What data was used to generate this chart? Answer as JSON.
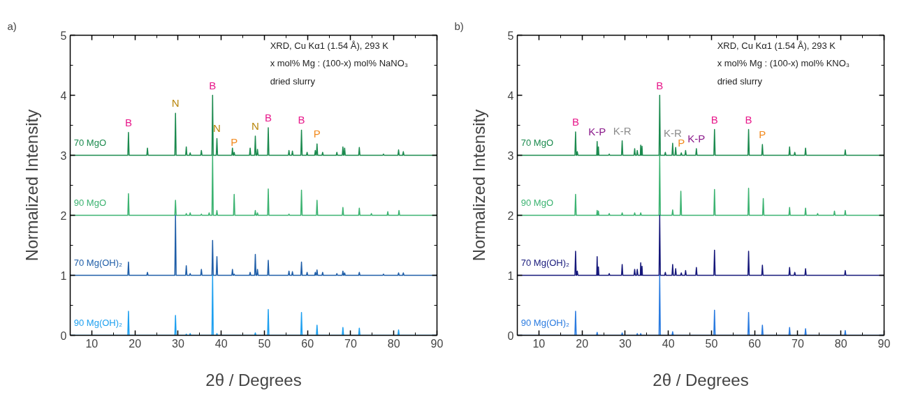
{
  "chart_data": [
    {
      "type": "line",
      "title": "a)",
      "xlabel": "2θ / Degrees",
      "ylabel": "Normalized Intensity",
      "xlim": [
        5,
        90
      ],
      "ylim": [
        0,
        5
      ],
      "xticks": [
        10,
        20,
        30,
        40,
        50,
        60,
        70,
        80,
        90
      ],
      "yticks": [
        0,
        1,
        2,
        3,
        4,
        5
      ],
      "annotations": [
        "XRD, Cu Kα1 (1.54 Å), 293 K",
        "x mol% Mg : (100-x) mol% NaNO₃",
        "dried slurry",
        {
          "text": "B",
          "x": 18.5,
          "y": 3.38
        },
        {
          "text": "N",
          "x": 29.4,
          "y": 3.7
        },
        {
          "text": "B",
          "x": 38,
          "y": 4
        },
        {
          "text": "N",
          "x": 39,
          "y": 3.28
        },
        {
          "text": "P",
          "x": 43,
          "y": 3.05
        },
        {
          "text": "N",
          "x": 47.9,
          "y": 3.32
        },
        {
          "text": "B",
          "x": 50.9,
          "y": 3.46
        },
        {
          "text": "B",
          "x": 58.6,
          "y": 3.42
        },
        {
          "text": "P",
          "x": 62.2,
          "y": 3.19
        }
      ],
      "series": [
        {
          "name": "70 MgO",
          "color": "#1b8a4e",
          "x": [
            5,
            18.35,
            18.5,
            18.65,
            22.75,
            22.9,
            23.05,
            29.25,
            29.4,
            29.55,
            31.75,
            31.9,
            32.05,
            32.65,
            32.8,
            32.95,
            35.25,
            35.4,
            35.55,
            37.85,
            38,
            38.15,
            38.85,
            39,
            39.15,
            42.45,
            42.6,
            42.75,
            42.85,
            43,
            43.15,
            46.55,
            46.7,
            46.85,
            47.75,
            47.9,
            48.05,
            48.25,
            48.4,
            48.55,
            50.75,
            50.9,
            51.05,
            55.55,
            55.7,
            55.85,
            56.35,
            56.5,
            56.65,
            58.45,
            58.6,
            58.75,
            59.75,
            59.9,
            60.05,
            61.65,
            61.8,
            61.95,
            62.05,
            62.2,
            62.35,
            63.35,
            63.5,
            63.65,
            66.65,
            66.8,
            66.95,
            68.05,
            68.2,
            68.35,
            68.45,
            68.6,
            68.75,
            71.85,
            72,
            72.15,
            77.45,
            77.6,
            77.75,
            80.95,
            81.1,
            81.25,
            82.05,
            82.2,
            82.35,
            90
          ],
          "values": [
            3,
            3,
            3.38,
            3,
            3,
            3.12,
            3,
            3,
            3.7,
            3,
            3,
            3.14,
            3,
            3,
            3.04,
            3,
            3,
            3.08,
            3,
            3,
            4,
            3,
            3,
            3.28,
            3,
            3,
            3.12,
            3,
            3,
            3.05,
            3,
            3,
            3.12,
            3,
            3,
            3.32,
            3,
            3,
            3.1,
            3,
            3,
            3.46,
            3,
            3,
            3.08,
            3,
            3,
            3.07,
            3,
            3,
            3.42,
            3,
            3,
            3.05,
            3,
            3,
            3.08,
            3,
            3,
            3.19,
            3,
            3,
            3.05,
            3,
            3,
            3.05,
            3,
            3,
            3.14,
            3,
            3,
            3.12,
            3,
            3,
            3.13,
            3,
            3,
            3.02,
            3,
            3,
            3.09,
            3,
            3,
            3.06,
            3,
            3
          ]
        },
        {
          "name": "90 MgO",
          "color": "#3cb371",
          "x": [
            5,
            18.35,
            18.5,
            18.65,
            29.25,
            29.4,
            29.55,
            31.75,
            31.9,
            32.05,
            32.65,
            32.8,
            32.95,
            35.25,
            35.4,
            35.55,
            37.05,
            37.2,
            37.35,
            37.85,
            38,
            38.15,
            38.85,
            39,
            39.15,
            42.85,
            43,
            43.15,
            47.75,
            47.9,
            48.05,
            48.25,
            48.4,
            48.55,
            50.75,
            50.9,
            51.05,
            55.55,
            55.7,
            55.85,
            58.45,
            58.6,
            58.75,
            62.05,
            62.2,
            62.35,
            68.05,
            68.2,
            68.35,
            71.85,
            72,
            72.15,
            74.65,
            74.8,
            74.95,
            78.45,
            78.6,
            78.75,
            81.05,
            81.2,
            81.35,
            90
          ],
          "values": [
            2,
            2,
            2.36,
            2,
            2,
            2.25,
            2,
            2,
            2.03,
            2,
            2,
            2.04,
            2,
            2,
            2.02,
            2,
            2,
            2.04,
            2,
            2,
            3,
            2,
            2,
            2.08,
            2,
            2,
            2.35,
            2,
            2,
            2.08,
            2,
            2,
            2.04,
            2,
            2,
            2.44,
            2,
            2,
            2.02,
            2,
            2,
            2.42,
            2,
            2,
            2.25,
            2,
            2,
            2.13,
            2,
            2,
            2.12,
            2,
            2,
            2.03,
            2,
            2,
            2.06,
            2,
            2,
            2.08,
            2,
            2
          ]
        },
        {
          "name": "70 Mg(OH)₂",
          "color": "#1f5ea8",
          "x": [
            5,
            18.35,
            18.5,
            18.65,
            22.75,
            22.9,
            23.05,
            29.25,
            29.4,
            29.55,
            31.75,
            31.9,
            32.05,
            32.65,
            32.8,
            32.95,
            35.25,
            35.4,
            35.55,
            37.85,
            38,
            38.15,
            38.85,
            39,
            39.15,
            42.45,
            42.6,
            42.75,
            42.85,
            43,
            43.15,
            46.55,
            46.7,
            46.85,
            47.75,
            47.9,
            48.05,
            48.25,
            48.4,
            48.55,
            50.75,
            50.9,
            51.05,
            55.55,
            55.7,
            55.85,
            56.35,
            56.5,
            56.65,
            58.45,
            58.6,
            58.75,
            59.75,
            59.9,
            60.05,
            61.65,
            61.8,
            61.95,
            62.05,
            62.2,
            62.35,
            63.35,
            63.5,
            63.65,
            66.65,
            66.8,
            66.95,
            68.05,
            68.2,
            68.35,
            68.45,
            68.6,
            68.75,
            71.85,
            72,
            72.15,
            77.45,
            77.6,
            77.75,
            80.95,
            81.1,
            81.25,
            82.05,
            82.2,
            82.35,
            90
          ],
          "values": [
            1,
            1,
            1.22,
            1,
            1,
            1.05,
            1,
            1,
            2,
            1,
            1,
            1.16,
            1,
            1,
            1.03,
            1,
            1,
            1.1,
            1,
            1,
            1.58,
            1,
            1,
            1.31,
            1,
            1,
            1.1,
            1,
            1,
            1.02,
            1,
            1,
            1.05,
            1,
            1,
            1.35,
            1,
            1,
            1.1,
            1,
            1,
            1.25,
            1,
            1,
            1.07,
            1,
            1,
            1.06,
            1,
            1,
            1.22,
            1,
            1,
            1.05,
            1,
            1,
            1.05,
            1,
            1,
            1.09,
            1,
            1,
            1.05,
            1,
            1,
            1.03,
            1,
            1,
            1.07,
            1,
            1,
            1.04,
            1,
            1,
            1.05,
            1,
            1,
            1.02,
            1,
            1,
            1.04,
            1,
            1,
            1.04,
            1,
            1
          ]
        },
        {
          "name": "90 Mg(OH)₂",
          "color": "#1ea0f0",
          "x": [
            5,
            18.35,
            18.5,
            18.65,
            29.25,
            29.4,
            29.55,
            31.75,
            31.9,
            32.05,
            32.65,
            32.8,
            32.95,
            37.85,
            38,
            38.15,
            38.85,
            39,
            39.15,
            47.75,
            47.9,
            48.05,
            50.75,
            50.9,
            51.05,
            58.45,
            58.6,
            58.75,
            62.05,
            62.2,
            62.35,
            68.05,
            68.2,
            68.35,
            71.85,
            72,
            72.15,
            80.95,
            81.1,
            81.25,
            90
          ],
          "values": [
            0,
            0,
            0.4,
            0,
            0,
            0.33,
            0,
            0,
            0.02,
            0,
            0,
            0.03,
            0,
            0,
            1,
            0,
            0,
            0.03,
            0,
            0,
            0.04,
            0,
            0,
            0.43,
            0,
            0,
            0.38,
            0,
            0,
            0.17,
            0,
            0,
            0.13,
            0,
            0,
            0.12,
            0,
            0,
            0.09,
            0,
            0
          ]
        }
      ]
    },
    {
      "type": "line",
      "title": "b)",
      "xlabel": "2θ / Degrees",
      "ylabel": "Normalized Intensity",
      "xlim": [
        5,
        90
      ],
      "ylim": [
        0,
        5
      ],
      "xticks": [
        10,
        20,
        30,
        40,
        50,
        60,
        70,
        80,
        90
      ],
      "yticks": [
        0,
        1,
        2,
        3,
        4,
        5
      ],
      "annotations": [
        "XRD, Cu Kα1 (1.54 Å), 293 K",
        "x mol% Mg : (100-x) mol% KNO₃",
        "dried slurry",
        {
          "text": "B",
          "x": 18.5,
          "y": 3.39
        },
        {
          "text": "K-P",
          "x": 23.5,
          "y": 3.23
        },
        {
          "text": "K-R",
          "x": 29.3,
          "y": 3.24
        },
        {
          "text": "B",
          "x": 38,
          "y": 4
        },
        {
          "text": "K-R",
          "x": 41,
          "y": 3.2
        },
        {
          "text": "P",
          "x": 43,
          "y": 3.04
        },
        {
          "text": "K-P",
          "x": 46.5,
          "y": 3.11
        },
        {
          "text": "B",
          "x": 50.7,
          "y": 3.43
        },
        {
          "text": "B",
          "x": 58.6,
          "y": 3.43
        },
        {
          "text": "P",
          "x": 61.8,
          "y": 3.18
        }
      ],
      "series": [
        {
          "name": "70 MgO",
          "color": "#1b8a4e",
          "x": [
            5,
            18.35,
            18.5,
            18.65,
            18.75,
            18.9,
            19.05,
            23.4,
            23.5,
            23.6,
            23.7,
            23.8,
            23.9,
            26.15,
            26.3,
            26.45,
            29.15,
            29.3,
            29.45,
            32.05,
            32.2,
            32.35,
            32.65,
            32.8,
            32.95,
            33.5,
            33.6,
            33.7,
            33.8,
            33.9,
            34.0,
            37.85,
            38,
            38.15,
            39.15,
            39.3,
            39.45,
            40.85,
            41,
            41.15,
            41.55,
            41.7,
            41.85,
            42.85,
            43,
            43.15,
            43.85,
            44,
            44.15,
            46.35,
            46.5,
            46.65,
            50.55,
            50.7,
            50.85,
            58.45,
            58.6,
            58.75,
            61.65,
            61.8,
            61.95,
            67.95,
            68.1,
            68.25,
            69.15,
            69.3,
            69.45,
            71.65,
            71.8,
            71.95,
            80.85,
            81,
            81.15,
            90
          ],
          "values": [
            3,
            3,
            3.39,
            3,
            3,
            3.06,
            3,
            3,
            3.23,
            3,
            3,
            3.14,
            3,
            3,
            3.02,
            3,
            3,
            3.24,
            3,
            3,
            3.11,
            3,
            3,
            3.08,
            3,
            3,
            3.17,
            3,
            3,
            3.15,
            3,
            3,
            4,
            3,
            3,
            3.05,
            3,
            3,
            3.2,
            3,
            3,
            3.13,
            3,
            3,
            3.04,
            3,
            3,
            3.08,
            3,
            3,
            3.11,
            3,
            3,
            3.43,
            3,
            3,
            3.43,
            3,
            3,
            3.18,
            3,
            3,
            3.14,
            3,
            3,
            3.05,
            3,
            3,
            3.12,
            3,
            3,
            3.09,
            3,
            3
          ]
        },
        {
          "name": "90 MgO",
          "color": "#3cb371",
          "x": [
            5,
            18.35,
            18.5,
            18.65,
            23.4,
            23.5,
            23.6,
            23.7,
            23.8,
            23.9,
            26.15,
            26.3,
            26.45,
            29.15,
            29.3,
            29.45,
            32.05,
            32.2,
            32.35,
            33.45,
            33.6,
            33.75,
            37.85,
            38,
            38.15,
            40.85,
            41,
            41.15,
            42.75,
            42.9,
            43.05,
            50.55,
            50.7,
            50.85,
            58.45,
            58.6,
            58.75,
            61.85,
            62,
            62.15,
            67.95,
            68.1,
            68.25,
            71.65,
            71.8,
            71.95,
            74.45,
            74.6,
            74.75,
            78.35,
            78.5,
            78.65,
            80.85,
            81,
            81.15,
            90
          ],
          "values": [
            2,
            2,
            2.35,
            2,
            2,
            2.08,
            2,
            2,
            2.07,
            2,
            2,
            2.03,
            2,
            2,
            2.04,
            2,
            2,
            2.04,
            2,
            2,
            2.04,
            2,
            2,
            3,
            2,
            2,
            2.09,
            2,
            2,
            2.4,
            2,
            2,
            2.43,
            2,
            2,
            2.45,
            2,
            2,
            2.28,
            2,
            2,
            2.13,
            2,
            2,
            2.12,
            2,
            2,
            2.03,
            2,
            2,
            2.07,
            2,
            2,
            2.08,
            2,
            2
          ]
        },
        {
          "name": "70 Mg(OH)₂",
          "color": "#15177a",
          "x": [
            5,
            18.35,
            18.5,
            18.65,
            18.75,
            18.9,
            19.05,
            23.4,
            23.5,
            23.6,
            23.7,
            23.8,
            23.9,
            26.15,
            26.3,
            26.45,
            29.15,
            29.3,
            29.45,
            32.05,
            32.2,
            32.35,
            32.65,
            32.8,
            32.95,
            33.5,
            33.6,
            33.7,
            33.8,
            33.9,
            34.0,
            37.85,
            38,
            38.15,
            39.15,
            39.3,
            39.45,
            40.85,
            41,
            41.15,
            41.55,
            41.7,
            41.85,
            42.85,
            43,
            43.15,
            43.85,
            44,
            44.15,
            46.35,
            46.5,
            46.65,
            50.55,
            50.7,
            50.85,
            58.45,
            58.6,
            58.75,
            61.65,
            61.8,
            61.95,
            67.95,
            68.1,
            68.25,
            69.15,
            69.3,
            69.45,
            71.65,
            71.8,
            71.95,
            80.85,
            81,
            81.15,
            90
          ],
          "values": [
            1,
            1,
            1.4,
            1,
            1,
            1.07,
            1,
            1,
            1.31,
            1,
            1,
            1.14,
            1,
            1,
            1.03,
            1,
            1,
            1.18,
            1,
            1,
            1.1,
            1,
            1,
            1.1,
            1,
            1,
            1.21,
            1,
            1,
            1.15,
            1,
            1,
            2,
            1,
            1,
            1.05,
            1,
            1,
            1.18,
            1,
            1,
            1.11,
            1,
            1,
            1.04,
            1,
            1,
            1.08,
            1,
            1,
            1.13,
            1,
            1,
            1.42,
            1,
            1,
            1.4,
            1,
            1,
            1.17,
            1,
            1,
            1.13,
            1,
            1,
            1.05,
            1,
            1,
            1.11,
            1,
            1,
            1.08,
            1,
            1
          ]
        },
        {
          "name": "90 Mg(OH)₂",
          "color": "#2a7be0",
          "x": [
            5,
            18.35,
            18.5,
            18.65,
            23.35,
            23.5,
            23.65,
            29.15,
            29.3,
            29.45,
            32.65,
            32.8,
            32.95,
            33.45,
            33.6,
            33.75,
            37.85,
            38,
            38.15,
            40.85,
            41,
            41.15,
            50.55,
            50.7,
            50.85,
            58.45,
            58.6,
            58.75,
            61.65,
            61.8,
            61.95,
            67.95,
            68.1,
            68.25,
            71.65,
            71.8,
            71.95,
            80.85,
            81,
            81.15,
            90
          ],
          "values": [
            0,
            0,
            0.4,
            0,
            0,
            0.05,
            0,
            0,
            0.04,
            0,
            0,
            0.03,
            0,
            0,
            0.03,
            0,
            0,
            1,
            0,
            0,
            0.06,
            0,
            0,
            0.42,
            0,
            0,
            0.38,
            0,
            0,
            0.17,
            0,
            0,
            0.13,
            0,
            0,
            0.11,
            0,
            0,
            0.08,
            0,
            0
          ]
        }
      ]
    }
  ]
}
